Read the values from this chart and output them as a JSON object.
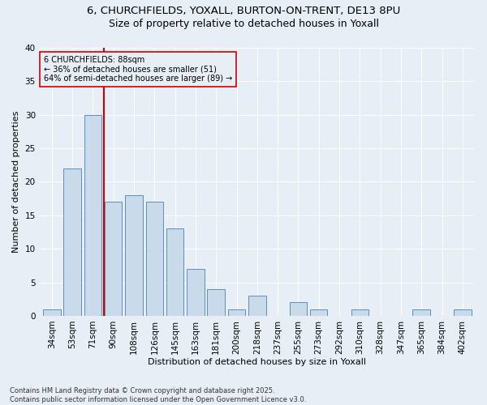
{
  "title_line1": "6, CHURCHFIELDS, YOXALL, BURTON-ON-TRENT, DE13 8PU",
  "title_line2": "Size of property relative to detached houses in Yoxall",
  "xlabel": "Distribution of detached houses by size in Yoxall",
  "ylabel": "Number of detached properties",
  "bins": [
    "34sqm",
    "53sqm",
    "71sqm",
    "90sqm",
    "108sqm",
    "126sqm",
    "145sqm",
    "163sqm",
    "181sqm",
    "200sqm",
    "218sqm",
    "237sqm",
    "255sqm",
    "273sqm",
    "292sqm",
    "310sqm",
    "328sqm",
    "347sqm",
    "365sqm",
    "384sqm",
    "402sqm"
  ],
  "values": [
    1,
    22,
    30,
    17,
    18,
    17,
    13,
    7,
    4,
    1,
    3,
    0,
    2,
    1,
    0,
    1,
    0,
    0,
    1,
    0,
    1
  ],
  "bar_color": "#c9daeb",
  "bar_edge_color": "#5b8fbe",
  "vline_color": "#cc0000",
  "vline_x": 2.55,
  "annotation_text": "6 CHURCHFIELDS: 88sqm\n← 36% of detached houses are smaller (51)\n64% of semi-detached houses are larger (89) →",
  "ann_box_facecolor": "#e8eef5",
  "ann_box_edgecolor": "#cc0000",
  "ylim": [
    0,
    40
  ],
  "yticks": [
    0,
    5,
    10,
    15,
    20,
    25,
    30,
    35,
    40
  ],
  "footer": "Contains HM Land Registry data © Crown copyright and database right 2025.\nContains public sector information licensed under the Open Government Licence v3.0.",
  "bg_color": "#e8eef5",
  "grid_color": "#ffffff",
  "title_fontsize": 9.5,
  "subtitle_fontsize": 9.0,
  "axis_label_fontsize": 8.0,
  "tick_fontsize": 7.5,
  "footer_fontsize": 6.0
}
